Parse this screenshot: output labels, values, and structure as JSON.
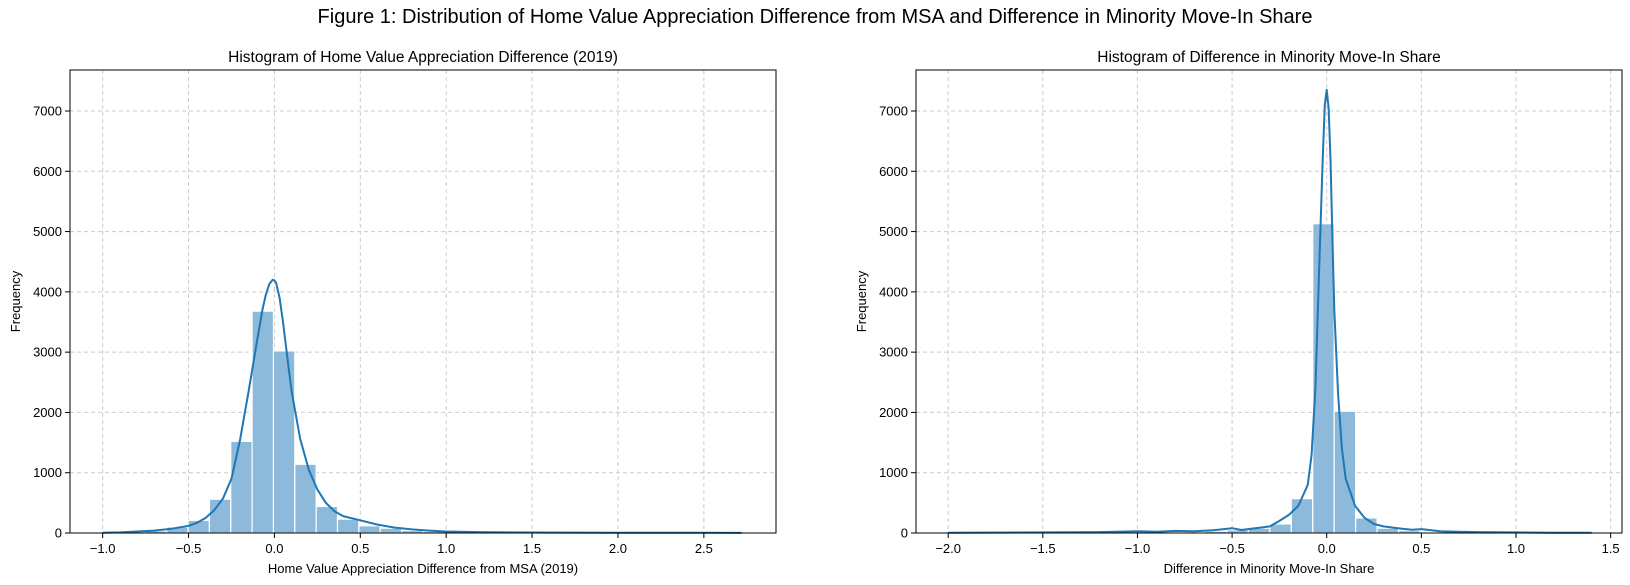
{
  "figure": {
    "title": "Figure 1: Distribution of Home Value Appreciation Difference from MSA and Difference in Minority Move-In Share"
  },
  "colors": {
    "bar_fill": "#8dbadb",
    "bar_edge": "#ffffff",
    "kde_line": "#1f77b4",
    "grid": "#cccccc",
    "axes": "#000000"
  },
  "chart_data": [
    {
      "type": "bar",
      "subtype": "histogram_with_kde",
      "title": "Histogram of Home Value Appreciation Difference (2019)",
      "xlabel": "Home Value Appreciation Difference from MSA (2019)",
      "ylabel": "Frequency",
      "xlim": [
        -1.19,
        2.92
      ],
      "ylim": [
        0,
        7680
      ],
      "xticks": [
        -1.0,
        -0.5,
        0.0,
        0.5,
        1.0,
        1.5,
        2.0,
        2.5
      ],
      "xtick_labels": [
        "−1.0",
        "−0.5",
        "0.0",
        "0.5",
        "1.0",
        "1.5",
        "2.0",
        "2.5"
      ],
      "yticks": [
        0,
        1000,
        2000,
        3000,
        4000,
        5000,
        6000,
        7000
      ],
      "ytick_labels": [
        "0",
        "1000",
        "2000",
        "3000",
        "4000",
        "5000",
        "6000",
        "7000"
      ],
      "grid": true,
      "bins": {
        "start": -1.0,
        "width": 0.1243,
        "values": [
          4,
          15,
          35,
          100,
          210,
          560,
          1520,
          3680,
          3020,
          1140,
          440,
          230,
          120,
          80,
          40,
          25,
          15,
          10,
          8,
          6,
          5,
          4,
          3,
          2,
          2,
          1,
          1,
          1,
          1,
          1
        ]
      },
      "kde": {
        "x": [
          -1.0,
          -0.9,
          -0.8,
          -0.7,
          -0.6,
          -0.5,
          -0.45,
          -0.4,
          -0.35,
          -0.3,
          -0.25,
          -0.2,
          -0.15,
          -0.1,
          -0.07,
          -0.05,
          -0.03,
          -0.01,
          0.0,
          0.01,
          0.03,
          0.05,
          0.08,
          0.1,
          0.15,
          0.2,
          0.25,
          0.3,
          0.35,
          0.4,
          0.5,
          0.6,
          0.7,
          0.8,
          0.9,
          1.0,
          1.2,
          1.5,
          2.0,
          2.5,
          2.72
        ],
        "y": [
          5,
          10,
          25,
          40,
          70,
          120,
          170,
          250,
          380,
          570,
          900,
          1550,
          2350,
          3200,
          3700,
          3950,
          4130,
          4200,
          4190,
          4150,
          3900,
          3500,
          2800,
          2350,
          1560,
          1050,
          720,
          500,
          360,
          280,
          210,
          140,
          90,
          60,
          40,
          25,
          15,
          8,
          5,
          3,
          2
        ]
      }
    },
    {
      "type": "bar",
      "subtype": "histogram_with_kde",
      "title": "Histogram of Difference in Minority Move-In Share",
      "xlabel": "Difference in Minority Move-In Share",
      "ylabel": "Frequency",
      "xlim": [
        -2.17,
        1.56
      ],
      "ylim": [
        0,
        7680
      ],
      "xticks": [
        -2.0,
        -1.5,
        -1.0,
        -0.5,
        0.0,
        0.5,
        1.0,
        1.5
      ],
      "xtick_labels": [
        "−2.0",
        "−1.5",
        "−1.0",
        "−0.5",
        "0.0",
        "0.5",
        "1.0",
        "1.5"
      ],
      "yticks": [
        0,
        1000,
        2000,
        3000,
        4000,
        5000,
        6000,
        7000
      ],
      "ytick_labels": [
        "0",
        "1000",
        "2000",
        "3000",
        "4000",
        "5000",
        "6000",
        "7000"
      ],
      "grid": true,
      "bins": {
        "start": -2.0,
        "width": 0.1133,
        "values": [
          2,
          2,
          2,
          3,
          3,
          4,
          5,
          6,
          8,
          12,
          15,
          20,
          30,
          50,
          80,
          150,
          570,
          5130,
          2020,
          250,
          80,
          40,
          20,
          12,
          8,
          5,
          4,
          3,
          2,
          2
        ]
      },
      "kde": {
        "x": [
          -2.0,
          -1.5,
          -1.2,
          -1.0,
          -0.9,
          -0.8,
          -0.7,
          -0.6,
          -0.5,
          -0.45,
          -0.4,
          -0.35,
          -0.3,
          -0.25,
          -0.2,
          -0.15,
          -0.1,
          -0.08,
          -0.06,
          -0.04,
          -0.02,
          -0.01,
          0.0,
          0.01,
          0.02,
          0.03,
          0.04,
          0.06,
          0.08,
          0.1,
          0.15,
          0.2,
          0.25,
          0.3,
          0.35,
          0.4,
          0.45,
          0.5,
          0.6,
          0.7,
          0.8,
          1.0,
          1.2,
          1.4
        ],
        "y": [
          5,
          10,
          15,
          30,
          20,
          35,
          30,
          45,
          80,
          50,
          70,
          90,
          110,
          200,
          300,
          450,
          800,
          1300,
          2400,
          4400,
          6300,
          7100,
          7350,
          7050,
          6200,
          4900,
          3700,
          2300,
          1400,
          900,
          450,
          250,
          150,
          110,
          90,
          70,
          55,
          65,
          30,
          20,
          15,
          10,
          5,
          3
        ]
      }
    }
  ]
}
